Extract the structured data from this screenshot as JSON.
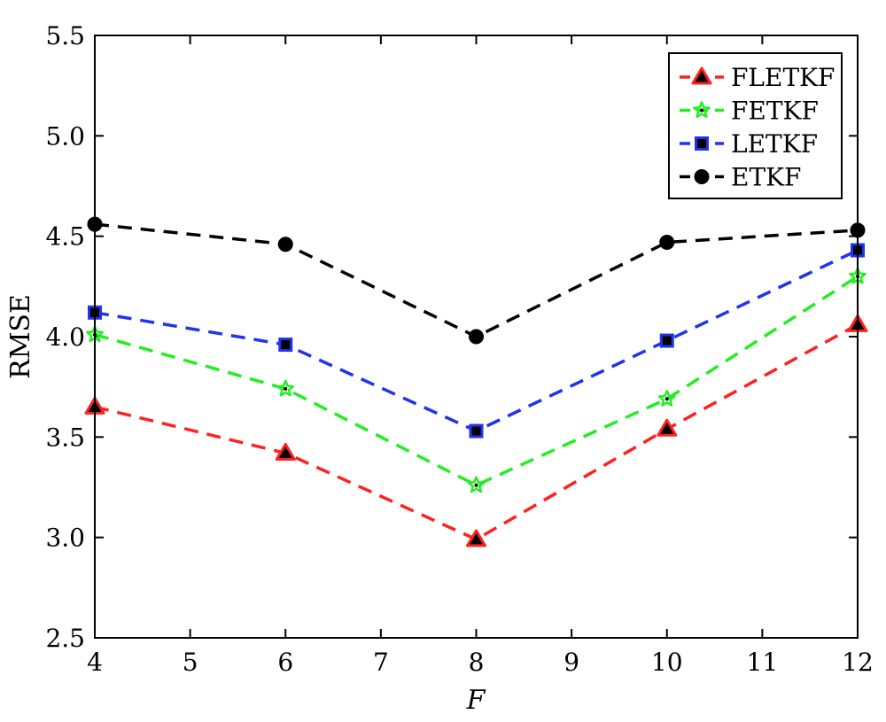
{
  "chart_data": {
    "type": "line",
    "title": "",
    "xlabel": "F",
    "ylabel": "RMSE",
    "xlim": [
      4,
      12
    ],
    "ylim": [
      2.5,
      5.5
    ],
    "x_ticks": [
      4,
      5,
      6,
      7,
      8,
      9,
      10,
      11,
      12
    ],
    "x_tick_labels": [
      "4",
      "5",
      "6",
      "7",
      "8",
      "9",
      "10",
      "11",
      "12"
    ],
    "y_ticks": [
      2.5,
      3.0,
      3.5,
      4.0,
      4.5,
      5.0,
      5.5
    ],
    "y_tick_labels": [
      "2.5",
      "3.0",
      "3.5",
      "4.0",
      "4.5",
      "5.0",
      "5.5"
    ],
    "grid": false,
    "legend_position": "top-right",
    "x": [
      4,
      6,
      8,
      10,
      12
    ],
    "series": [
      {
        "name": "FLETKF",
        "values": [
          3.65,
          3.42,
          2.99,
          3.54,
          4.06
        ],
        "color": "#ff2020",
        "marker": "triangle",
        "line_style": "dashed"
      },
      {
        "name": "FETKF",
        "values": [
          4.01,
          3.74,
          3.26,
          3.69,
          4.3
        ],
        "color": "#22ee22",
        "marker": "star",
        "line_style": "dashed"
      },
      {
        "name": "LETKF",
        "values": [
          4.12,
          3.96,
          3.53,
          3.98,
          4.43
        ],
        "color": "#2233ee",
        "marker": "square",
        "line_style": "dashed"
      },
      {
        "name": "ETKF",
        "values": [
          4.56,
          4.46,
          4.0,
          4.47,
          4.53
        ],
        "color": "#000000",
        "marker": "circle",
        "line_style": "dashed"
      }
    ]
  }
}
